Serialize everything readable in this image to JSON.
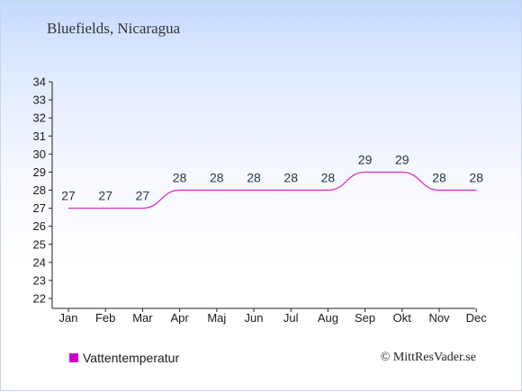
{
  "title": "Bluefields, Nicaragua",
  "chart_data": {
    "type": "line",
    "categories": [
      "Jan",
      "Feb",
      "Mar",
      "Apr",
      "Maj",
      "Jun",
      "Jul",
      "Aug",
      "Sep",
      "Okt",
      "Nov",
      "Dec"
    ],
    "series": [
      {
        "name": "Vattentemperatur",
        "values": [
          27,
          27,
          27,
          28,
          28,
          28,
          28,
          28,
          29,
          29,
          28,
          28
        ]
      }
    ],
    "ylim": [
      22,
      34
    ],
    "yticks": [
      22,
      23,
      24,
      25,
      26,
      27,
      28,
      29,
      30,
      31,
      32,
      33,
      34
    ],
    "legend_position": "bottom-left",
    "grid": false
  },
  "legend": {
    "label": "Vattentemperatur"
  },
  "copyright": "© MittResVader.se",
  "colors": {
    "series": "#dd22cc",
    "swatch": "#cc00cc",
    "axis": "#222222"
  }
}
